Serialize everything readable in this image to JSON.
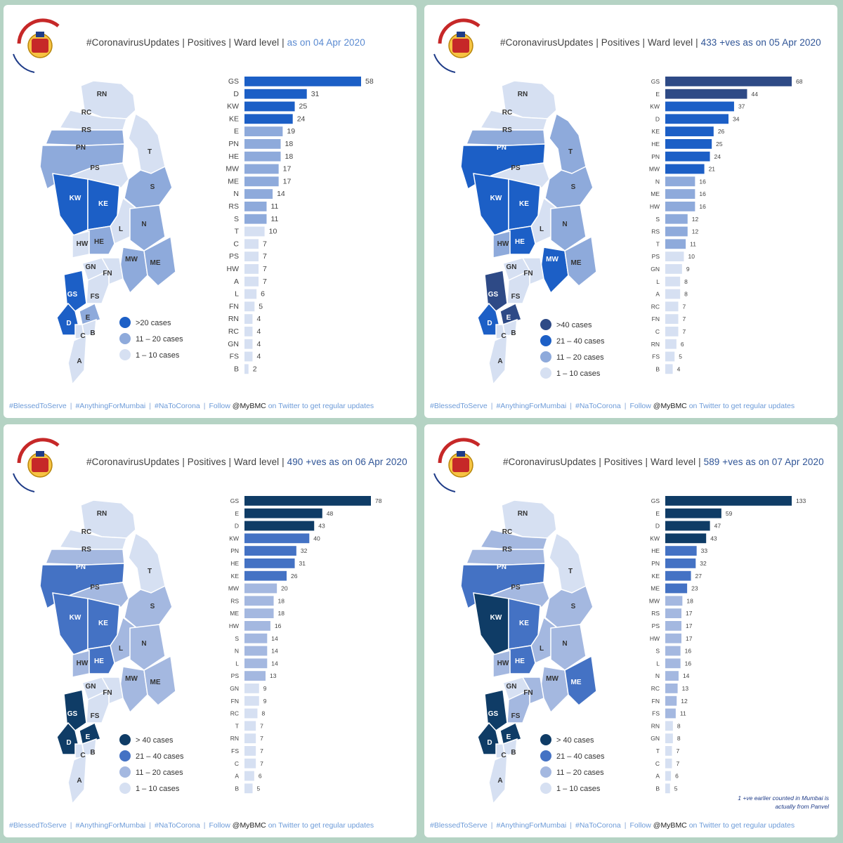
{
  "footer": {
    "tag1": "#BlessedToServe",
    "tag2": "#AnythingForMumbai",
    "tag3": "#NaToCorona",
    "follow": "Follow",
    "handle": "@MyBMC",
    "suffix": "on Twitter to get regular updates"
  },
  "logo": {
    "devanagari": "बृहन्मुंबई महानगरपालिका",
    "english": "Brihanmumbai Municipal Corporation"
  },
  "colors": {
    "darkest": "#1f3f6b",
    "dark": "#1c5fc6",
    "mid": "#4472c4",
    "light": "#8eaadb",
    "lightest": "#d6e0f2"
  },
  "panels": [
    {
      "title": "#CoronavirusUpdates | Positives | Ward level |",
      "date": "as on 04 Apr 2020",
      "legend": [
        {
          "label": ">20 cases",
          "color": "#1c5fc6"
        },
        {
          "label": "11 – 20 cases",
          "color": "#8eaadb"
        },
        {
          "label": "1 – 10 cases",
          "color": "#d6e0f2"
        }
      ],
      "note": ""
    },
    {
      "title": "#CoronavirusUpdates | Positives | Ward level |",
      "date": "433 +ves as on 05 Apr 2020",
      "legend": [
        {
          "label": ">40 cases",
          "color": "#2e4a86"
        },
        {
          "label": "21 – 40 cases",
          "color": "#1c5fc6"
        },
        {
          "label": "11 – 20 cases",
          "color": "#8eaadb"
        },
        {
          "label": "1 – 10 cases",
          "color": "#d6e0f2"
        }
      ],
      "note": ""
    },
    {
      "title": "#CoronavirusUpdates | Positives | Ward level |",
      "date": "490 +ves as on 06 Apr 2020",
      "legend": [
        {
          "label": "> 40 cases",
          "color": "#0f3c66"
        },
        {
          "label": "21 – 40 cases",
          "color": "#4472c4"
        },
        {
          "label": "11 – 20 cases",
          "color": "#a4b8e0"
        },
        {
          "label": "1 – 10 cases",
          "color": "#d6e0f2"
        }
      ],
      "note": ""
    },
    {
      "title": "#CoronavirusUpdates | Positives | Ward level |",
      "date": "589 +ves as on 07 Apr 2020",
      "legend": [
        {
          "label": "> 40 cases",
          "color": "#0f3c66"
        },
        {
          "label": "21 – 40 cases",
          "color": "#4472c4"
        },
        {
          "label": "11 – 20 cases",
          "color": "#a4b8e0"
        },
        {
          "label": "1 – 10 cases",
          "color": "#d6e0f2"
        }
      ],
      "note": "1 +ve earlier counted in Mumbai is actually from Panvel"
    }
  ],
  "chart_data": [
    {
      "type": "bar",
      "orientation": "horizontal",
      "date": "04 Apr 2020",
      "categories": [
        "GS",
        "D",
        "KW",
        "KE",
        "E",
        "PN",
        "HE",
        "MW",
        "ME",
        "N",
        "RS",
        "S",
        "T",
        "C",
        "PS",
        "HW",
        "A",
        "L",
        "FN",
        "RN",
        "RC",
        "GN",
        "FS",
        "B"
      ],
      "values": [
        58,
        31,
        25,
        24,
        19,
        18,
        18,
        17,
        17,
        14,
        11,
        11,
        10,
        7,
        7,
        7,
        7,
        6,
        5,
        4,
        4,
        4,
        4,
        2
      ],
      "xlim": [
        0,
        58
      ]
    },
    {
      "type": "bar",
      "orientation": "horizontal",
      "date": "05 Apr 2020",
      "categories": [
        "GS",
        "E",
        "KW",
        "D",
        "KE",
        "HE",
        "PN",
        "MW",
        "N",
        "ME",
        "HW",
        "S",
        "RS",
        "T",
        "PS",
        "GN",
        "L",
        "A",
        "RC",
        "FN",
        "C",
        "RN",
        "FS",
        "B"
      ],
      "values": [
        68,
        44,
        37,
        34,
        26,
        25,
        24,
        21,
        16,
        16,
        16,
        12,
        12,
        11,
        10,
        9,
        8,
        8,
        7,
        7,
        7,
        6,
        5,
        4
      ],
      "xlim": [
        0,
        68
      ]
    },
    {
      "type": "bar",
      "orientation": "horizontal",
      "date": "06 Apr 2020",
      "categories": [
        "GS",
        "E",
        "D",
        "KW",
        "PN",
        "HE",
        "KE",
        "MW",
        "RS",
        "ME",
        "HW",
        "S",
        "N",
        "L",
        "PS",
        "GN",
        "FN",
        "RC",
        "T",
        "RN",
        "FS",
        "C",
        "A",
        "B"
      ],
      "values": [
        78,
        48,
        43,
        40,
        32,
        31,
        26,
        20,
        18,
        18,
        16,
        14,
        14,
        14,
        13,
        9,
        9,
        8,
        7,
        7,
        7,
        7,
        6,
        5
      ],
      "xlim": [
        0,
        78
      ]
    },
    {
      "type": "bar",
      "orientation": "horizontal",
      "date": "07 Apr 2020",
      "categories": [
        "GS",
        "E",
        "D",
        "KW",
        "HE",
        "PN",
        "KE",
        "ME",
        "MW",
        "RS",
        "PS",
        "HW",
        "S",
        "L",
        "N",
        "RC",
        "FN",
        "FS",
        "RN",
        "GN",
        "T",
        "C",
        "A",
        "B"
      ],
      "values": [
        133,
        59,
        47,
        43,
        33,
        32,
        27,
        23,
        18,
        17,
        17,
        17,
        16,
        16,
        14,
        13,
        12,
        11,
        8,
        8,
        7,
        7,
        6,
        5
      ],
      "xlim": [
        0,
        133
      ]
    }
  ]
}
